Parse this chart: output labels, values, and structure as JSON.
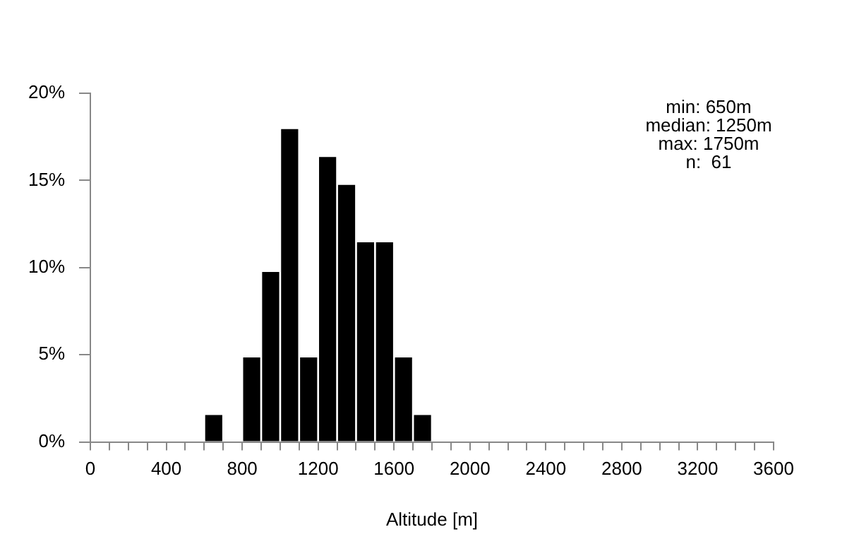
{
  "chart_data": {
    "type": "histogram",
    "xlabel": "Altitude [m]",
    "bins": [
      600,
      700,
      800,
      900,
      1000,
      1100,
      1200,
      1300,
      1400,
      1500,
      1600,
      1700,
      1800
    ],
    "values": [
      1.6,
      0,
      4.9,
      9.8,
      18,
      4.9,
      16.4,
      14.8,
      11.5,
      11.5,
      4.9,
      1.6
    ],
    "color": "#000000",
    "xlim": [
      0,
      3600
    ],
    "xticks": [
      0,
      {
        "value": 100,
        "label": null
      },
      {
        "value": 200,
        "label": null
      },
      {
        "value": 300,
        "label": null
      },
      400,
      {
        "value": 500,
        "label": null
      },
      {
        "value": 600,
        "label": null
      },
      {
        "value": 700,
        "label": null
      },
      800,
      {
        "value": 900,
        "label": null
      },
      {
        "value": 1000,
        "label": null
      },
      {
        "value": 1100,
        "label": null
      },
      1200,
      {
        "value": 1300,
        "label": null
      },
      {
        "value": 1400,
        "label": null
      },
      {
        "value": 1500,
        "label": null
      },
      1600,
      {
        "value": 1700,
        "label": null
      },
      {
        "value": 1800,
        "label": null
      },
      {
        "value": 1900,
        "label": null
      },
      2000,
      {
        "value": 2100,
        "label": null
      },
      {
        "value": 2200,
        "label": null
      },
      {
        "value": 2300,
        "label": null
      },
      2400,
      {
        "value": 2500,
        "label": null
      },
      {
        "value": 2600,
        "label": null
      },
      {
        "value": 2700,
        "label": null
      },
      2800,
      {
        "value": 2900,
        "label": null
      },
      {
        "value": 3000,
        "label": null
      },
      {
        "value": 3100,
        "label": null
      },
      3200,
      {
        "value": 3300,
        "label": null
      },
      {
        "value": 3400,
        "label": null
      },
      {
        "value": 3500,
        "label": null
      },
      3600
    ],
    "ylim": [
      0,
      20
    ],
    "yticks": [
      {
        "value": 0,
        "label": "0%"
      },
      {
        "value": 5,
        "label": "5%"
      },
      {
        "value": 10,
        "label": "10%"
      },
      {
        "value": 15,
        "label": "15%"
      },
      {
        "value": 20,
        "label": "20%"
      }
    ],
    "annotations": [
      "min: 650m",
      "median: 1250m",
      "max: 1750m",
      "n:  61"
    ],
    "grid": false,
    "legend": false
  }
}
